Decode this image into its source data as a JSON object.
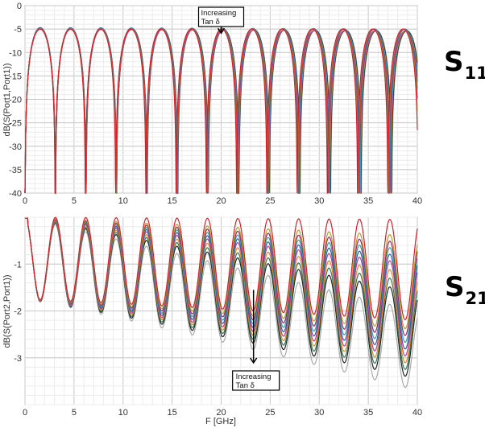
{
  "chart_data": [
    {
      "type": "line",
      "panel_label_main": "S",
      "panel_label_sub": "11",
      "ylabel": "dB(S(Port1,Port1))",
      "xlabel": "",
      "xlim": [
        0,
        40
      ],
      "ylim": [
        -40,
        0
      ],
      "xticks": [
        "0",
        "5",
        "10",
        "15",
        "20",
        "25",
        "30",
        "35",
        "40"
      ],
      "yticks": [
        "0",
        "-5",
        "-10",
        "-15",
        "-20",
        "-25",
        "-30",
        "-35",
        "-40"
      ],
      "grid": true,
      "annotation": {
        "line1": "Increasing",
        "line2": "Tan  δ",
        "x": 20,
        "y_box": -1,
        "y_arrow_tip": -4.5
      },
      "null_frequencies_ghz": [
        3.1,
        6.2,
        9.3,
        12.4,
        15.5,
        18.6,
        21.7,
        24.8,
        27.9,
        31.0,
        34.1,
        37.2,
        40.3
      ],
      "peak_value_db": -5,
      "num_curves": 10
    },
    {
      "type": "line",
      "panel_label_main": "S",
      "panel_label_sub": "21",
      "ylabel": "dB(S(Port2,Port1))",
      "xlabel": "F [GHz]",
      "xlim": [
        0,
        40
      ],
      "ylim": [
        -4,
        0
      ],
      "xticks": [
        "0",
        "5",
        "10",
        "15",
        "20",
        "25",
        "30",
        "35",
        "40"
      ],
      "yticks": [
        "-1",
        "-2",
        "-3"
      ],
      "grid": true,
      "annotation": {
        "line1": "Increasing",
        "line2": "Tan  δ",
        "x": 23.3,
        "y_box": -3.45,
        "y_arrow_tip": -1.55
      },
      "ripple_period_ghz": 3.1,
      "curves_max_db_at_40ghz": [
        -0.05,
        -0.4,
        -0.55,
        -0.7,
        -0.85,
        -1.0,
        -1.2,
        -1.4,
        -1.6,
        -2.0
      ],
      "curves_min_db_at_40ghz": [
        -2.2,
        -2.4,
        -2.55,
        -2.7,
        -2.85,
        -3.0,
        -3.15,
        -3.3,
        -3.45,
        -3.7
      ],
      "num_curves": 10
    }
  ],
  "curve_colors": [
    "#d61f2a",
    "#b0a030",
    "#9a2560",
    "#3c9aa8",
    "#2a5fa8",
    "#c03a8c",
    "#e08a2a",
    "#2e7a5a",
    "#222222",
    "#a9a9a9"
  ]
}
